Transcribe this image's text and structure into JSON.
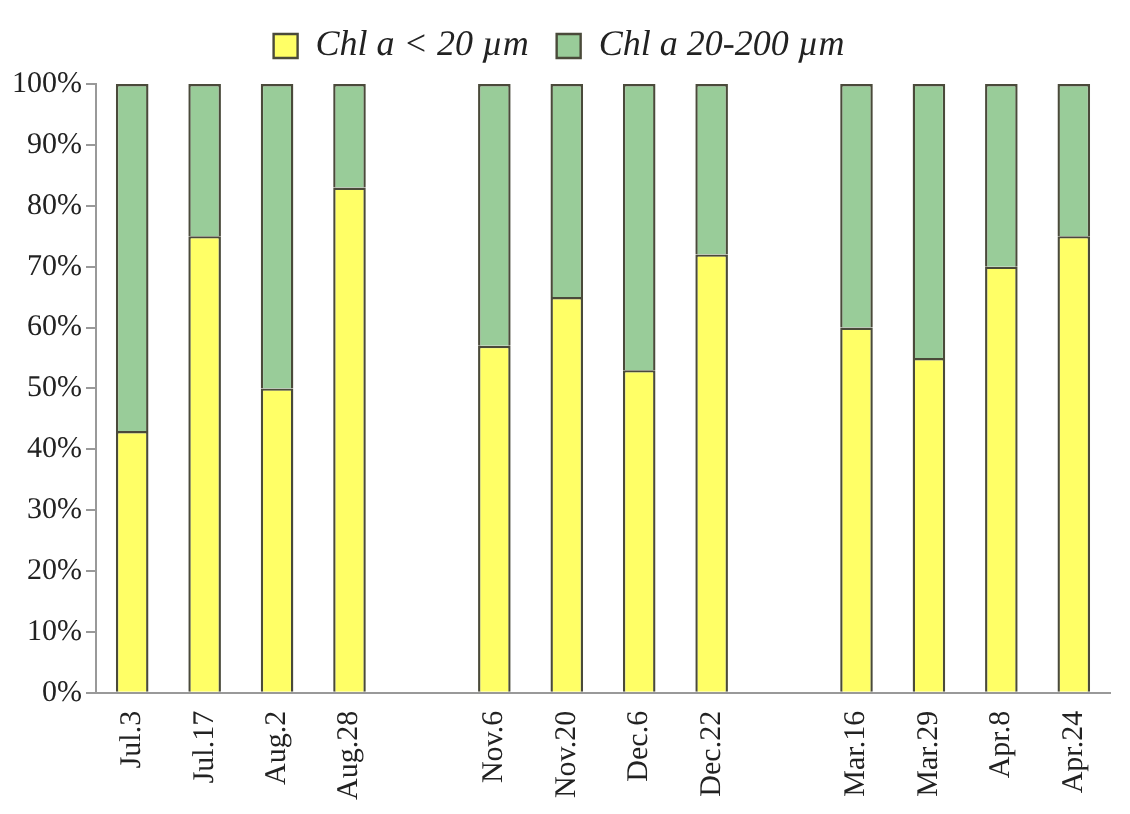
{
  "chart_data": {
    "type": "bar",
    "stacked": true,
    "categories": [
      "Jul.3",
      "Jul.17",
      "Aug.2",
      "Aug.28",
      null,
      "Nov.6",
      "Nov.20",
      "Dec.6",
      "Dec.22",
      null,
      "Mar.16",
      "Mar.29",
      "Apr.8",
      "Apr.24"
    ],
    "series": [
      {
        "name": "Chl a < 20 µm",
        "color": "#ffff66",
        "values": [
          43,
          75,
          50,
          83,
          null,
          57,
          65,
          53,
          72,
          null,
          60,
          55,
          70,
          75
        ]
      },
      {
        "name": "Chl a 20-200 µm",
        "color": "#99cc99",
        "values": [
          57,
          25,
          50,
          17,
          null,
          43,
          35,
          47,
          28,
          null,
          40,
          45,
          30,
          25
        ]
      }
    ],
    "ylim": [
      0,
      100
    ],
    "yticks": [
      {
        "value": 0,
        "label": "0%"
      },
      {
        "value": 10,
        "label": "10%"
      },
      {
        "value": 20,
        "label": "20%"
      },
      {
        "value": 30,
        "label": "30%"
      },
      {
        "value": 40,
        "label": "40%"
      },
      {
        "value": 50,
        "label": "50%"
      },
      {
        "value": 60,
        "label": "60%"
      },
      {
        "value": 70,
        "label": "70%"
      },
      {
        "value": 80,
        "label": "80%"
      },
      {
        "value": 90,
        "label": "90%"
      },
      {
        "value": 100,
        "label": "100%"
      }
    ],
    "grid": false,
    "legend": "top"
  }
}
